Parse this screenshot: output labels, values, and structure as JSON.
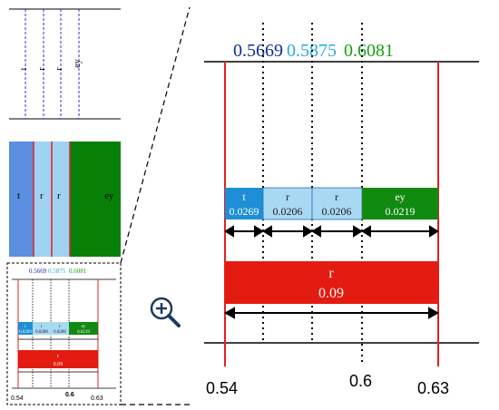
{
  "colors": {
    "t": "#1e8fd6",
    "r": "#a9d8f3",
    "r_dark": "#8dcff0",
    "ey": "#118a11",
    "big_r": "#e41b10",
    "boundary": "#e32020",
    "t_text": "#0d2b9e",
    "r_text": "#28a8e0",
    "ey_text": "#15a015",
    "left_t": "#5b8fe0",
    "left_r": "#9fd2f3",
    "left_ey": "#088008"
  },
  "top_labels": {
    "t": "0.5669",
    "r": "0.5875",
    "ey": "0.6081"
  },
  "segments": [
    {
      "token": "t",
      "value": "0.0269"
    },
    {
      "token": "r",
      "value": "0.0206"
    },
    {
      "token": "r",
      "value": "0.0206"
    },
    {
      "token": "ey",
      "value": "0.0219"
    }
  ],
  "total": {
    "token": "r",
    "value": "0.09"
  },
  "axis": {
    "left": "0.54",
    "mid": "0.6",
    "right": "0.63"
  },
  "top_left_labels": [
    "t",
    "r",
    "r",
    "ey"
  ],
  "band_labels": [
    "t",
    "r",
    "r",
    "ey"
  ],
  "zoom_icon": "magnifier-plus-icon"
}
